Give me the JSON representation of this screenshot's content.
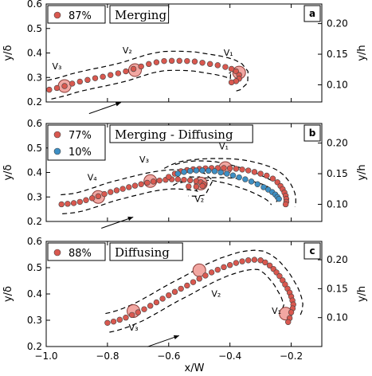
{
  "figure": {
    "xlabel": "x/W",
    "ylabel_left": "y/δ",
    "ylabel_right": "y/h",
    "xlim": [
      -1.0,
      -0.1
    ],
    "xticks": [
      "−1.0",
      "−0.8",
      "−0.6",
      "−0.4",
      "−0.2"
    ],
    "xtick_values": [
      -1.0,
      -0.8,
      -0.6,
      -0.4,
      -0.2
    ]
  },
  "colors": {
    "red_marker": "#d9584f",
    "blue_marker": "#3d8fc4",
    "marker_edge": "#444444",
    "highlight": "#f2a7a2"
  },
  "chart_data": [
    {
      "type": "scatter",
      "panel": "a",
      "box_label": "Merging",
      "ylim": [
        0.2,
        0.6
      ],
      "yticks_left": [
        "0.2",
        "0.3",
        "0.4",
        "0.5",
        "0.6"
      ],
      "yticks_left_values": [
        0.2,
        0.3,
        0.4,
        0.5,
        0.6
      ],
      "yticks_right": [
        "0.10",
        "0.15",
        "0.20"
      ],
      "yticks_right_values": [
        0.27,
        0.395,
        0.52
      ],
      "legend": [
        {
          "label": "87%",
          "color": "red"
        }
      ],
      "series": [
        {
          "color": "red",
          "x": [
            -0.99,
            -0.965,
            -0.94,
            -0.915,
            -0.89,
            -0.865,
            -0.84,
            -0.815,
            -0.79,
            -0.765,
            -0.74,
            -0.715,
            -0.69,
            -0.665,
            -0.64,
            -0.615,
            -0.59,
            -0.565,
            -0.54,
            -0.515,
            -0.49,
            -0.465,
            -0.44,
            -0.415,
            -0.395,
            -0.38,
            -0.37,
            -0.37,
            -0.38,
            -0.395
          ],
          "y": [
            0.25,
            0.257,
            0.265,
            0.275,
            0.283,
            0.29,
            0.297,
            0.303,
            0.31,
            0.317,
            0.325,
            0.335,
            0.345,
            0.355,
            0.362,
            0.367,
            0.368,
            0.368,
            0.367,
            0.365,
            0.36,
            0.355,
            0.35,
            0.343,
            0.335,
            0.325,
            0.31,
            0.295,
            0.285,
            0.28
          ]
        }
      ],
      "vortices": [
        {
          "label": "V₁",
          "x": -0.37,
          "y": 0.32,
          "lx": -0.405,
          "ly": 0.388
        },
        {
          "label": "V₂",
          "x": -0.71,
          "y": 0.33,
          "lx": -0.735,
          "ly": 0.398
        },
        {
          "label": "V₃",
          "x": -0.94,
          "y": 0.265,
          "lx": -0.965,
          "ly": 0.333
        }
      ]
    },
    {
      "type": "scatter",
      "panel": "b",
      "box_label": "Merging - Diffusing",
      "ylim": [
        0.2,
        0.6
      ],
      "yticks_left": [
        "0.2",
        "0.3",
        "0.4",
        "0.5",
        "0.6"
      ],
      "yticks_left_values": [
        0.2,
        0.3,
        0.4,
        0.5,
        0.6
      ],
      "yticks_right": [
        "0.10",
        "0.15",
        "0.20"
      ],
      "yticks_right_values": [
        0.27,
        0.395,
        0.52
      ],
      "legend": [
        {
          "label": "77%",
          "color": "red"
        },
        {
          "label": "10%",
          "color": "blue"
        }
      ],
      "series": [
        {
          "color": "red",
          "x": [
            -0.95,
            -0.93,
            -0.91,
            -0.89,
            -0.87,
            -0.85,
            -0.83,
            -0.81,
            -0.79,
            -0.77,
            -0.75,
            -0.73,
            -0.71,
            -0.69,
            -0.67,
            -0.65,
            -0.63,
            -0.61,
            -0.59,
            -0.57,
            -0.55,
            -0.53,
            -0.51,
            -0.495,
            -0.485,
            -0.49,
            -0.51,
            -0.535
          ],
          "y": [
            0.27,
            0.272,
            0.275,
            0.28,
            0.287,
            0.295,
            0.303,
            0.312,
            0.32,
            0.327,
            0.333,
            0.34,
            0.346,
            0.352,
            0.358,
            0.363,
            0.367,
            0.37,
            0.372,
            0.372,
            0.37,
            0.368,
            0.365,
            0.36,
            0.352,
            0.345,
            0.342,
            0.343
          ]
        },
        {
          "color": "red",
          "x": [
            -0.6,
            -0.58,
            -0.56,
            -0.54,
            -0.52,
            -0.5,
            -0.48,
            -0.46,
            -0.44,
            -0.42,
            -0.4,
            -0.38,
            -0.36,
            -0.34,
            -0.32,
            -0.3,
            -0.28,
            -0.26,
            -0.245,
            -0.235,
            -0.228,
            -0.222,
            -0.218,
            -0.216,
            -0.216,
            -0.218
          ],
          "y": [
            0.382,
            0.395,
            0.405,
            0.41,
            0.413,
            0.415,
            0.417,
            0.418,
            0.418,
            0.418,
            0.417,
            0.415,
            0.412,
            0.408,
            0.402,
            0.395,
            0.387,
            0.375,
            0.36,
            0.345,
            0.332,
            0.318,
            0.305,
            0.292,
            0.28,
            0.27
          ]
        },
        {
          "color": "blue",
          "x": [
            -0.57,
            -0.55,
            -0.53,
            -0.51,
            -0.49,
            -0.47,
            -0.45,
            -0.43,
            -0.41,
            -0.39,
            -0.37,
            -0.35,
            -0.33,
            -0.31,
            -0.29,
            -0.275,
            -0.262,
            -0.252,
            -0.245,
            -0.24
          ],
          "y": [
            0.395,
            0.402,
            0.406,
            0.408,
            0.408,
            0.407,
            0.405,
            0.4,
            0.395,
            0.388,
            0.38,
            0.372,
            0.363,
            0.352,
            0.34,
            0.33,
            0.32,
            0.31,
            0.3,
            0.292
          ]
        }
      ],
      "vortices": [
        {
          "label": "V₁",
          "x": -0.415,
          "y": 0.418,
          "lx": -0.42,
          "ly": 0.495
        },
        {
          "label": "V₂",
          "x": -0.495,
          "y": 0.355,
          "lx": -0.5,
          "ly": 0.28
        },
        {
          "label": "V₃",
          "x": -0.66,
          "y": 0.365,
          "lx": -0.68,
          "ly": 0.44
        },
        {
          "label": "V₄",
          "x": -0.83,
          "y": 0.3,
          "lx": -0.85,
          "ly": 0.368
        }
      ]
    },
    {
      "type": "scatter",
      "panel": "c",
      "box_label": "Diffusing",
      "ylim": [
        0.2,
        0.6
      ],
      "yticks_left": [
        "0.2",
        "0.3",
        "0.4",
        "0.5",
        "0.6"
      ],
      "yticks_left_values": [
        0.2,
        0.3,
        0.4,
        0.5,
        0.6
      ],
      "yticks_right": [
        "0.10",
        "0.15",
        "0.20"
      ],
      "yticks_right_values": [
        0.31,
        0.42,
        0.53
      ],
      "legend": [
        {
          "label": "88%",
          "color": "red"
        }
      ],
      "series": [
        {
          "color": "red",
          "x": [
            -0.8,
            -0.78,
            -0.76,
            -0.74,
            -0.72,
            -0.7,
            -0.68,
            -0.66,
            -0.64,
            -0.62,
            -0.6,
            -0.58,
            -0.56,
            -0.54,
            -0.52,
            -0.5,
            -0.48,
            -0.46,
            -0.44,
            -0.42,
            -0.4,
            -0.38,
            -0.36,
            -0.34,
            -0.32,
            -0.3,
            -0.285,
            -0.27,
            -0.258,
            -0.248,
            -0.238,
            -0.228,
            -0.22,
            -0.212,
            -0.205,
            -0.2,
            -0.196,
            -0.193,
            -0.195,
            -0.2
          ],
          "y": [
            0.29,
            0.295,
            0.302,
            0.31,
            0.32,
            0.33,
            0.342,
            0.355,
            0.368,
            0.382,
            0.395,
            0.408,
            0.42,
            0.432,
            0.445,
            0.458,
            0.47,
            0.482,
            0.492,
            0.502,
            0.51,
            0.518,
            0.524,
            0.528,
            0.53,
            0.528,
            0.52,
            0.508,
            0.495,
            0.482,
            0.468,
            0.452,
            0.436,
            0.42,
            0.405,
            0.39,
            0.375,
            0.36,
            0.345,
            0.33
          ]
        },
        {
          "color": "red",
          "x": [
            -0.205,
            -0.21
          ],
          "y": [
            0.308,
            0.293
          ]
        }
      ],
      "vortices": [
        {
          "label": "V₁",
          "x": -0.218,
          "y": 0.325,
          "lx": -0.248,
          "ly": 0.325
        },
        {
          "label": "V₂",
          "x": -0.5,
          "y": 0.49,
          "lx": -0.445,
          "ly": 0.39
        },
        {
          "label": "V₃",
          "x": -0.715,
          "y": 0.335,
          "lx": -0.715,
          "ly": 0.26
        }
      ]
    }
  ]
}
